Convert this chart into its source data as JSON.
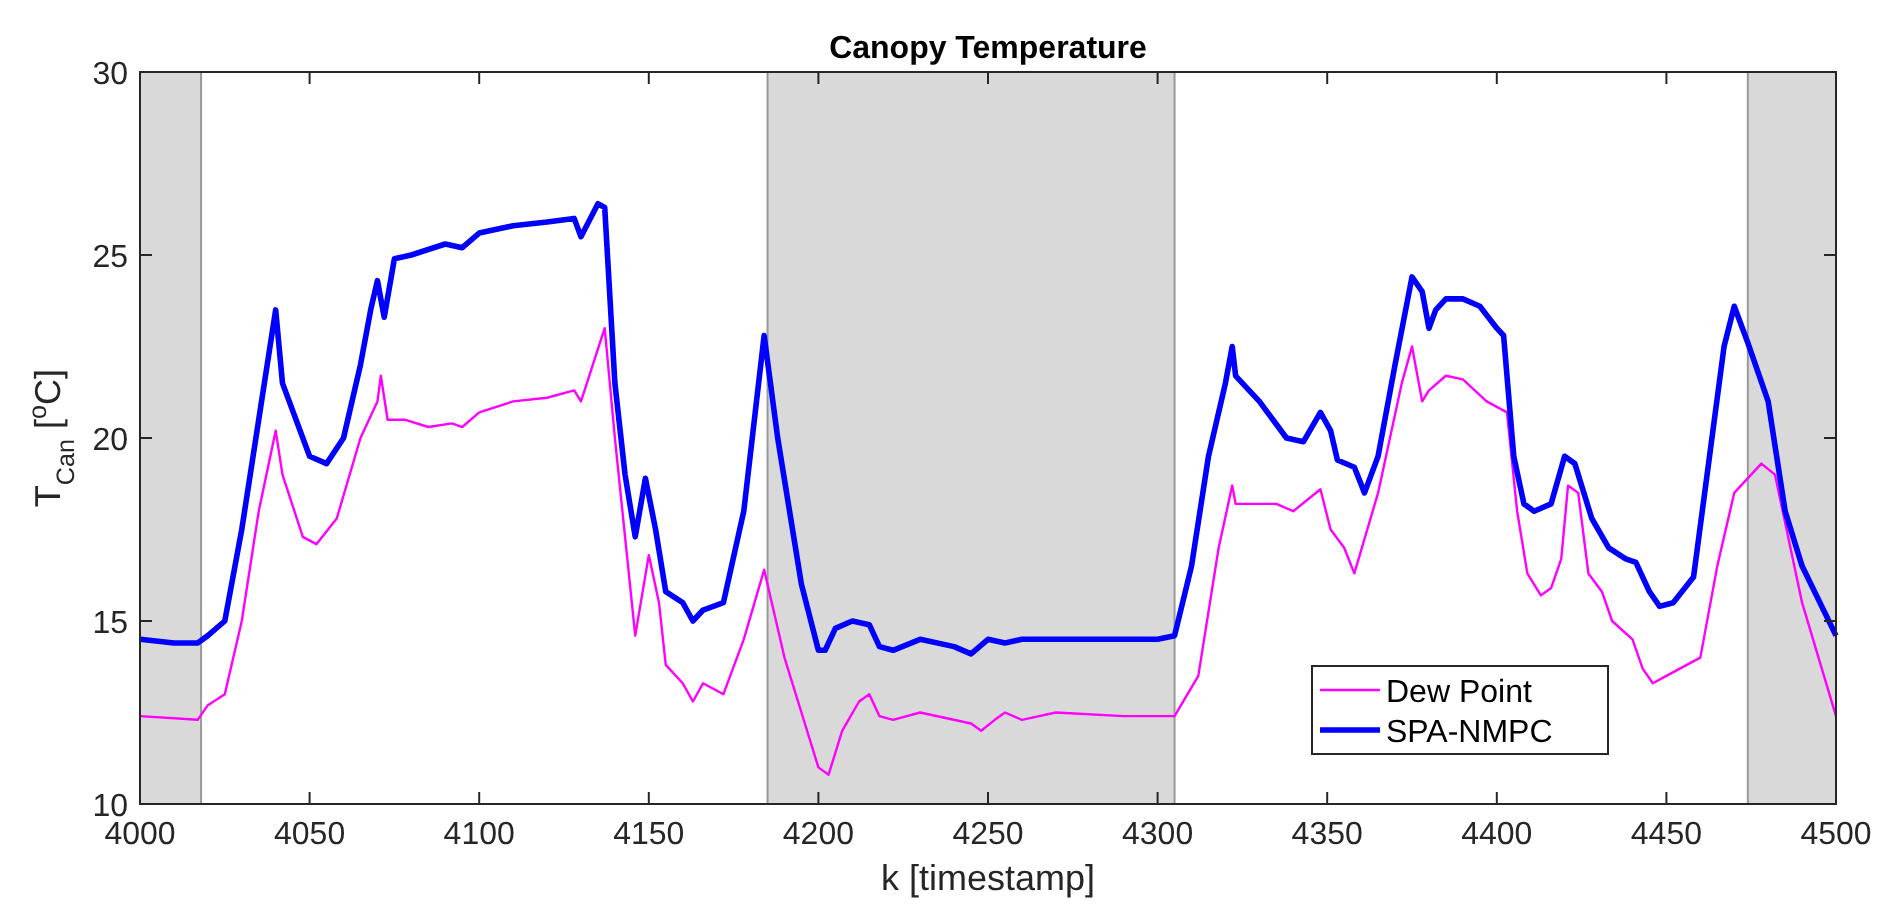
{
  "chart_data": {
    "type": "line",
    "title": "Canopy Temperature",
    "xlabel": "k [timestamp]",
    "ylabel": "T$_{Can}$ [$^{o}$C]",
    "xlim": [
      4000,
      4500
    ],
    "xticks": [
      4000,
      4050,
      4100,
      4150,
      4200,
      4250,
      4300,
      4350,
      4400,
      4450,
      4500
    ],
    "ylim": [
      10,
      30
    ],
    "yticks": [
      10,
      15,
      20,
      25,
      30
    ],
    "legend": "bottom right",
    "grid": false,
    "bands": [
      {
        "axis": "x",
        "from": 4000,
        "to": 4018,
        "color": "#d9d9d9"
      },
      {
        "axis": "x",
        "from": 4185,
        "to": 4305,
        "color": "#d9d9d9"
      },
      {
        "axis": "x",
        "from": 4474,
        "to": 4500,
        "color": "#d9d9d9"
      }
    ],
    "series": [
      {
        "name": "Dew Point",
        "color": "#ff00ff",
        "x": [
          4000,
          4017,
          4020,
          4025,
          4030,
          4035,
          4040,
          4042,
          4048,
          4052,
          4058,
          4065,
          4070,
          4071,
          4073,
          4078,
          4085,
          4092,
          4095,
          4100,
          4110,
          4120,
          4128,
          4130,
          4137,
          4140,
          4143,
          4146,
          4150,
          4153,
          4155,
          4160,
          4163,
          4166,
          4172,
          4178,
          4184,
          4190,
          4195,
          4200,
          4203,
          4207,
          4212,
          4215,
          4218,
          4222,
          4230,
          4245,
          4248,
          4252,
          4255,
          4260,
          4270,
          4290,
          4305,
          4312,
          4318,
          4322,
          4323,
          4335,
          4340,
          4348,
          4351,
          4355,
          4358,
          4365,
          4372,
          4375,
          4378,
          4380,
          4385,
          4390,
          4397,
          4403,
          4406,
          4409,
          4413,
          4416,
          4419,
          4421,
          4424,
          4427,
          4431,
          4434,
          4440,
          4443,
          4446,
          4450,
          4460,
          4465,
          4470,
          4478,
          4482,
          4490,
          4500
        ],
        "values": [
          12.4,
          12.3,
          12.7,
          13.0,
          15.0,
          18.0,
          20.2,
          19.0,
          17.3,
          17.1,
          17.8,
          20.0,
          21.0,
          21.7,
          20.5,
          20.5,
          20.3,
          20.4,
          20.3,
          20.7,
          21.0,
          21.1,
          21.3,
          21.0,
          23.0,
          20.0,
          17.3,
          14.6,
          16.8,
          15.5,
          13.8,
          13.3,
          12.8,
          13.3,
          13.0,
          14.5,
          16.4,
          14.0,
          12.5,
          11.0,
          10.8,
          12.0,
          12.8,
          13.0,
          12.4,
          12.3,
          12.5,
          12.2,
          12.0,
          12.3,
          12.5,
          12.3,
          12.5,
          12.4,
          12.4,
          13.5,
          17.0,
          18.7,
          18.2,
          18.2,
          18.0,
          18.6,
          17.5,
          17.0,
          16.3,
          18.5,
          21.5,
          22.5,
          21.0,
          21.3,
          21.7,
          21.6,
          21.0,
          20.7,
          18.0,
          16.3,
          15.7,
          15.9,
          16.7,
          18.7,
          18.5,
          16.3,
          15.8,
          15.0,
          14.5,
          13.7,
          13.3,
          13.5,
          14.0,
          16.5,
          18.5,
          19.3,
          19.0,
          15.5,
          12.4
        ]
      },
      {
        "name": "SPA-NMPC",
        "color": "#0000ff",
        "x": [
          4000,
          4010,
          4017,
          4020,
          4025,
          4030,
          4035,
          4040,
          4042,
          4050,
          4055,
          4060,
          4065,
          4068,
          4070,
          4072,
          4075,
          4080,
          4090,
          4095,
          4100,
          4110,
          4120,
          4128,
          4130,
          4135,
          4137,
          4140,
          4143,
          4146,
          4149,
          4152,
          4155,
          4160,
          4163,
          4166,
          4172,
          4178,
          4184,
          4188,
          4195,
          4200,
          4202,
          4205,
          4210,
          4215,
          4218,
          4222,
          4230,
          4240,
          4245,
          4250,
          4255,
          4260,
          4270,
          4280,
          4290,
          4300,
          4305,
          4310,
          4315,
          4320,
          4322,
          4323,
          4330,
          4338,
          4343,
          4348,
          4351,
          4353,
          4358,
          4361,
          4365,
          4370,
          4375,
          4378,
          4380,
          4382,
          4385,
          4390,
          4395,
          4400,
          4402,
          4405,
          4408,
          4411,
          4416,
          4420,
          4423,
          4428,
          4433,
          4438,
          4441,
          4445,
          4448,
          4452,
          4458,
          4462,
          4467,
          4470,
          4474,
          4480,
          4485,
          4490,
          4500
        ],
        "values": [
          14.5,
          14.4,
          14.4,
          14.6,
          15.0,
          17.5,
          20.5,
          23.5,
          21.5,
          19.5,
          19.3,
          20.0,
          22.0,
          23.5,
          24.3,
          23.3,
          24.9,
          25.0,
          25.3,
          25.2,
          25.6,
          25.8,
          25.9,
          26.0,
          25.5,
          26.4,
          26.3,
          21.5,
          19.0,
          17.3,
          18.9,
          17.5,
          15.8,
          15.5,
          15.0,
          15.3,
          15.5,
          18.0,
          22.8,
          20.0,
          16.0,
          14.2,
          14.2,
          14.8,
          15.0,
          14.9,
          14.3,
          14.2,
          14.5,
          14.3,
          14.1,
          14.5,
          14.4,
          14.5,
          14.5,
          14.5,
          14.5,
          14.5,
          14.6,
          16.5,
          19.5,
          21.5,
          22.5,
          21.7,
          21.0,
          20.0,
          19.9,
          20.7,
          20.2,
          19.4,
          19.2,
          18.5,
          19.5,
          22.0,
          24.4,
          24.0,
          23.0,
          23.5,
          23.8,
          23.8,
          23.6,
          23.0,
          22.8,
          19.5,
          18.2,
          18.0,
          18.2,
          19.5,
          19.3,
          17.8,
          17.0,
          16.7,
          16.6,
          15.8,
          15.4,
          15.5,
          16.2,
          19.0,
          22.5,
          23.6,
          22.6,
          21.0,
          18.0,
          16.5,
          14.6
        ]
      }
    ]
  }
}
